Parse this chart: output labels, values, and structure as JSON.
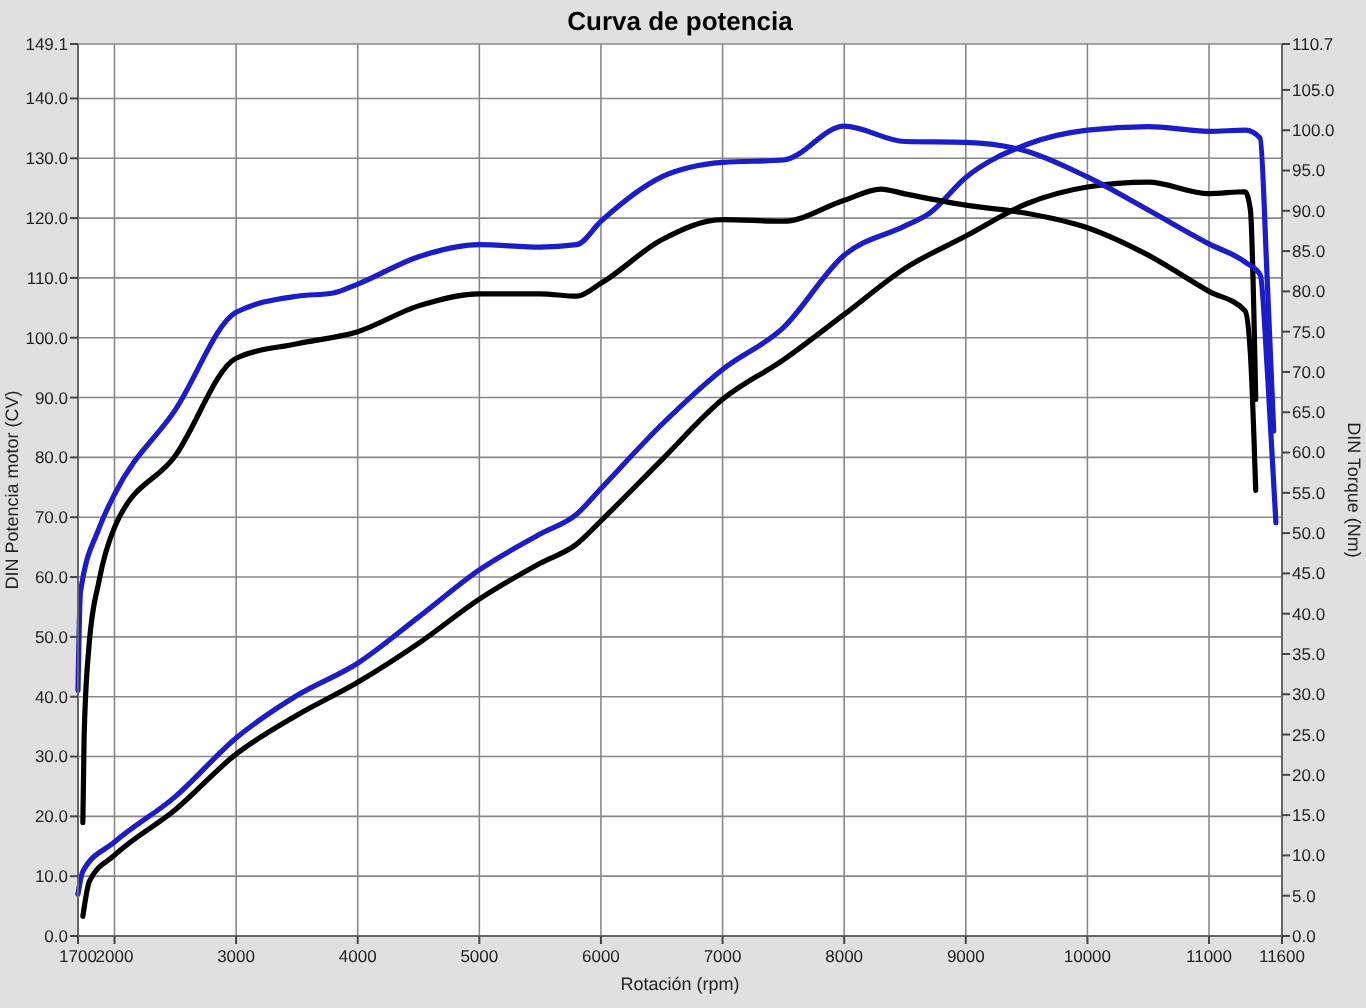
{
  "chart_data": {
    "type": "line",
    "title": "Curva de potencia",
    "xlabel": "Rotación (rpm)",
    "ylabel": "DIN Potencia motor (CV)",
    "y2label": "DIN Torque (Nm)",
    "xlim": [
      1700,
      11600
    ],
    "xticks": [
      {
        "value": 1700,
        "label": "1700"
      },
      2000,
      3000,
      4000,
      5000,
      6000,
      7000,
      8000,
      9000,
      10000,
      11000,
      11600
    ],
    "ylim": [
      0,
      149.1
    ],
    "yticks": [
      {
        "value": 0,
        "label": "0.0"
      },
      {
        "value": 10,
        "label": "10.0"
      },
      {
        "value": 20,
        "label": "20.0"
      },
      {
        "value": 30,
        "label": "30.0"
      },
      {
        "value": 40,
        "label": "40.0"
      },
      {
        "value": 50,
        "label": "50.0"
      },
      {
        "value": 60,
        "label": "60.0"
      },
      {
        "value": 70,
        "label": "70.0"
      },
      {
        "value": 80,
        "label": "80.0"
      },
      {
        "value": 90,
        "label": "90.0"
      },
      {
        "value": 100,
        "label": "100.0"
      },
      {
        "value": 110,
        "label": "110.0"
      },
      {
        "value": 120,
        "label": "120.0"
      },
      {
        "value": 130,
        "label": "130.0"
      },
      {
        "value": 140,
        "label": "140.0"
      },
      149.1
    ],
    "y2lim": [
      0,
      110.7
    ],
    "y2ticks": [
      {
        "value": 0,
        "label": "0.0"
      },
      {
        "value": 5,
        "label": "5.0"
      },
      {
        "value": 10,
        "label": "10.0"
      },
      {
        "value": 15,
        "label": "15.0"
      },
      {
        "value": 20,
        "label": "20.0"
      },
      {
        "value": 25,
        "label": "25.0"
      },
      {
        "value": 30,
        "label": "30.0"
      },
      {
        "value": 35,
        "label": "35.0"
      },
      {
        "value": 40,
        "label": "40.0"
      },
      {
        "value": 45,
        "label": "45.0"
      },
      {
        "value": 50,
        "label": "50.0"
      },
      {
        "value": 55,
        "label": "55.0"
      },
      {
        "value": 60,
        "label": "60.0"
      },
      {
        "value": 65,
        "label": "65.0"
      },
      {
        "value": 70,
        "label": "70.0"
      },
      {
        "value": 75,
        "label": "75.0"
      },
      {
        "value": 80,
        "label": "80.0"
      },
      {
        "value": 85,
        "label": "85.0"
      },
      {
        "value": 90,
        "label": "90.0"
      },
      {
        "value": 95,
        "label": "95.0"
      },
      {
        "value": 100,
        "label": "100.0"
      },
      {
        "value": 105,
        "label": "105.0"
      },
      110.7
    ],
    "grid": true,
    "marker": "none",
    "line_style": "solid",
    "series": [
      {
        "color": "#1c1cc8",
        "x": [
          1700,
          1740,
          2000,
          2500,
          3000,
          3500,
          4000,
          4500,
          5000,
          5500,
          5800,
          6000,
          6500,
          7000,
          7500,
          8000,
          8500,
          8700,
          9000,
          9500,
          10000,
          10500,
          11000,
          11300,
          11420,
          11477,
          11532
        ],
        "values": [
          7.0,
          10.8,
          15.7,
          23.3,
          33.1,
          40.2,
          45.6,
          53.3,
          61.2,
          67.2,
          70.5,
          74.8,
          85.5,
          94.7,
          101.7,
          113.8,
          118.7,
          120.8,
          126.8,
          132.3,
          134.7,
          135.3,
          134.5,
          134.7,
          133.4,
          110.4,
          84.4
        ]
      },
      {
        "color": "#000000",
        "x": [
          1740,
          1795,
          2000,
          2500,
          3000,
          3500,
          4000,
          4500,
          5000,
          5500,
          5800,
          6000,
          6500,
          7000,
          7500,
          8000,
          8500,
          9000,
          9500,
          10000,
          10500,
          11000,
          11296,
          11340,
          11384
        ],
        "values": [
          3.3,
          9.2,
          13.5,
          21.1,
          30.4,
          36.9,
          42.4,
          48.9,
          56.3,
          62.3,
          65.5,
          69.4,
          79.6,
          89.7,
          96.3,
          103.9,
          111.6,
          117.0,
          122.4,
          125.2,
          126.0,
          124.1,
          124.4,
          121.4,
          89.7
        ]
      },
      {
        "color": "#1c1cc8",
        "axis": "y2",
        "x": [
          1700,
          1720,
          1876,
          2000,
          2500,
          3000,
          3500,
          3800,
          4000,
          4500,
          5000,
          5500,
          5800,
          6000,
          6500,
          7000,
          7500,
          8000,
          8500,
          9000,
          9500,
          10000,
          10500,
          11000,
          11300,
          11422,
          11480,
          11550
        ],
        "values": [
          30.5,
          42.6,
          50.7,
          54.8,
          65.3,
          77.4,
          79.4,
          79.8,
          80.9,
          84.3,
          85.8,
          85.5,
          85.8,
          88.7,
          94.2,
          96.0,
          96.3,
          100.5,
          98.6,
          98.5,
          97.4,
          94.2,
          90.1,
          85.9,
          83.6,
          82.0,
          70.0,
          51.3
        ]
      },
      {
        "color": "#000000",
        "axis": "y2",
        "x": [
          1740,
          1750,
          1790,
          1875,
          2000,
          2500,
          3000,
          3500,
          4000,
          4500,
          5000,
          5500,
          5800,
          6000,
          6500,
          7000,
          7500,
          8000,
          8300,
          8500,
          9000,
          9500,
          10000,
          10500,
          11000,
          11296,
          11340,
          11384
        ],
        "values": [
          14.1,
          24.5,
          35.9,
          44.2,
          50.7,
          59.6,
          71.7,
          73.5,
          75.0,
          78.2,
          79.7,
          79.7,
          79.4,
          81.0,
          86.4,
          88.9,
          88.7,
          91.3,
          92.7,
          92.1,
          90.7,
          89.7,
          87.9,
          84.5,
          80.0,
          77.6,
          72.3,
          55.3
        ]
      }
    ]
  }
}
